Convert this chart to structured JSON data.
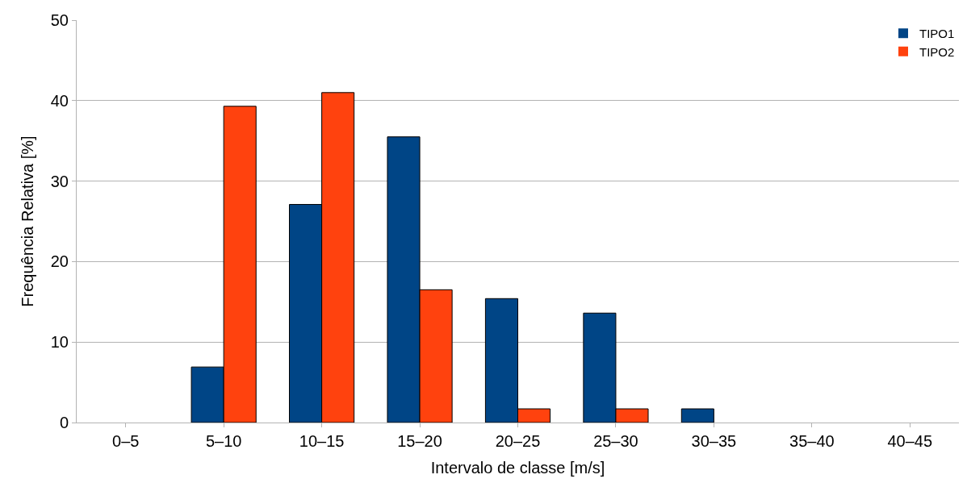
{
  "chart_data": {
    "type": "bar",
    "xlabel": "Intervalo de classe [m/s]",
    "ylabel": "Frequência Relativa [%]",
    "categories": [
      "0–5",
      "5–10",
      "10–15",
      "15–20",
      "20–25",
      "25–30",
      "30–35",
      "35–40",
      "40–45"
    ],
    "series": [
      {
        "name": "TIPO1",
        "color": "#004586",
        "values": [
          0,
          6.9,
          27.1,
          35.5,
          15.4,
          13.6,
          1.7,
          0,
          0
        ]
      },
      {
        "name": "TIPO2",
        "color": "#ff420e",
        "values": [
          0,
          39.3,
          41.0,
          16.5,
          1.7,
          1.7,
          0,
          0,
          0
        ]
      }
    ],
    "ylim": [
      0,
      50
    ],
    "yticks": [
      0,
      10,
      20,
      30,
      40,
      50
    ],
    "grid": "y",
    "legend": "top right"
  }
}
